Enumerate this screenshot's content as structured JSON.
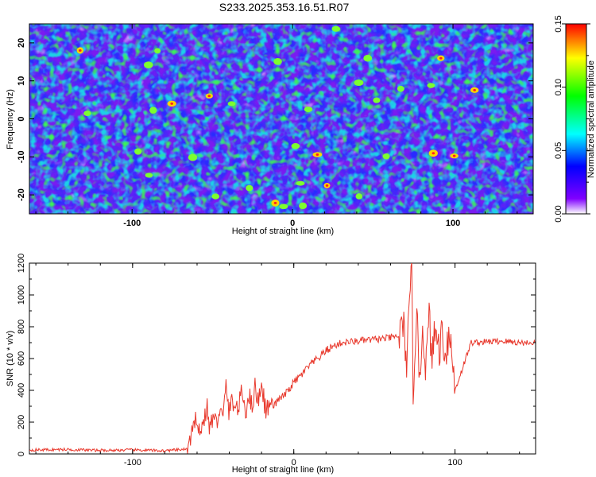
{
  "title": "S233.2025.353.16.51.R07",
  "chart_data": [
    {
      "type": "heatmap",
      "xlabel": "Height of straight line (km)",
      "ylabel": "Frequency (Hz)",
      "xlim": [
        -164,
        150
      ],
      "ylim": [
        -25,
        25
      ],
      "x_ticks": [
        -100,
        0,
        100
      ],
      "y_ticks": [
        -20,
        -10,
        0,
        10,
        20
      ],
      "colorbar": {
        "label": "Normalized spectral amplitude",
        "range": [
          0,
          0.15
        ],
        "ticks": [
          "0.00",
          "0.05",
          "0.10",
          "0.15"
        ],
        "colors": [
          "#ffffff",
          "#8000ff",
          "#0000ff",
          "#00ffff",
          "#00ff00",
          "#ffff00",
          "#ff0000"
        ]
      }
    },
    {
      "type": "line",
      "xlabel": "Height of straight line (km)",
      "ylabel": "SNR (10 * v/v)",
      "xlim": [
        -164,
        150
      ],
      "ylim": [
        0,
        1200
      ],
      "x_ticks": [
        -100,
        0,
        100
      ],
      "y_ticks": [
        0,
        200,
        400,
        600,
        800,
        1000,
        1200
      ],
      "color": "#e8382c",
      "series": [
        {
          "name": "SNR",
          "x": [
            -164,
            -140,
            -120,
            -100,
            -80,
            -66,
            -62,
            -60,
            -58,
            -56,
            -54,
            -52,
            -50,
            -48,
            -46,
            -44,
            -42,
            -40,
            -38,
            -36,
            -34,
            -32,
            -30,
            -28,
            -26,
            -24,
            -22,
            -20,
            -18,
            -16,
            -14,
            -12,
            -10,
            -8,
            -6,
            -4,
            -2,
            0,
            5,
            10,
            15,
            20,
            25,
            30,
            40,
            50,
            60,
            65,
            68,
            70,
            72,
            73,
            74,
            76,
            78,
            80,
            82,
            84,
            86,
            88,
            90,
            92,
            94,
            96,
            98,
            100,
            110,
            120,
            130,
            140,
            150
          ],
          "y": [
            25,
            28,
            22,
            25,
            20,
            30,
            150,
            250,
            120,
            200,
            300,
            150,
            250,
            180,
            300,
            200,
            440,
            250,
            350,
            280,
            300,
            400,
            260,
            380,
            300,
            420,
            330,
            460,
            300,
            280,
            330,
            300,
            340,
            350,
            370,
            390,
            420,
            450,
            500,
            560,
            600,
            650,
            680,
            700,
            710,
            720,
            730,
            740,
            800,
            600,
            900,
            1210,
            400,
            900,
            500,
            800,
            550,
            850,
            600,
            800,
            650,
            780,
            620,
            760,
            650,
            400,
            700,
            705,
            710,
            700,
            700
          ]
        }
      ]
    }
  ]
}
